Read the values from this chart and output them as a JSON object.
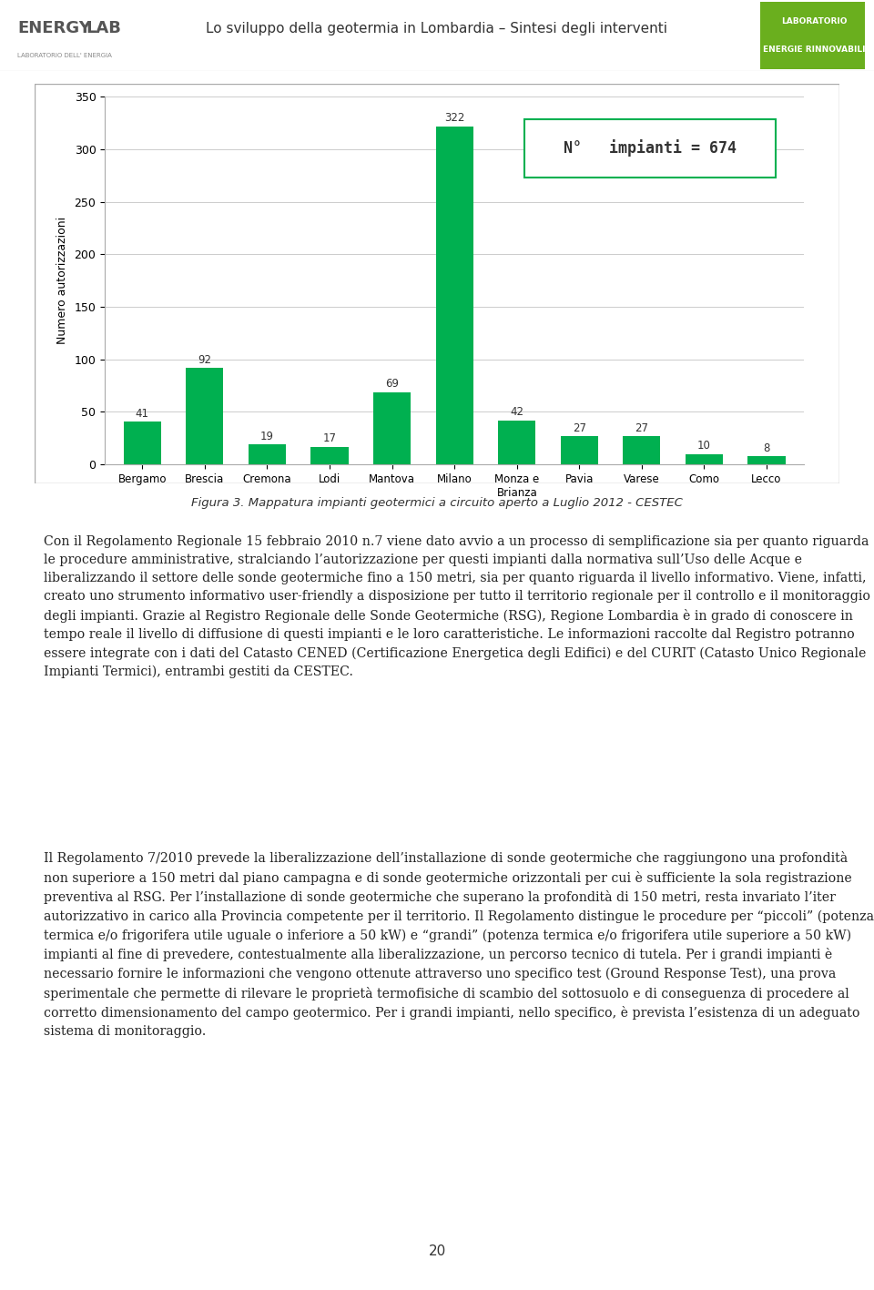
{
  "header_title": "Lo sviluppo della geotermia in Lombardia – Sintesi degli interventi",
  "header_left": "ENERGY LAB\nLABORATORIO DELL' ENERGIA",
  "header_right_line1": "LABORATORIO",
  "header_right_line2": "ENERGIE RINNOVABILI",
  "categories": [
    "Bergamo",
    "Brescia",
    "Cremona",
    "Lodi",
    "Mantova",
    "Milano",
    "Monza e\nBrianza",
    "Pavia",
    "Varese",
    "Como",
    "Lecco"
  ],
  "values": [
    41,
    92,
    19,
    17,
    69,
    322,
    42,
    27,
    27,
    10,
    8
  ],
  "bar_color": "#00b050",
  "ylabel": "Numero autorizzazioni",
  "ylim": [
    0,
    350
  ],
  "yticks": [
    0,
    50,
    100,
    150,
    200,
    250,
    300,
    350
  ],
  "annotation_label": "N°   impianti = 674",
  "figure_caption": "Figura 3. Mappatura impianti geotermici a circuito aperto a Luglio 2012 - CESTEC",
  "para1": "Con il Regolamento Regionale 15 febbraio 2010 n.7 viene dato avvio a un processo di semplificazione sia per quanto riguarda le procedure amministrative, stralciando l’autorizzazione per questi impianti dalla normativa sull’Uso delle Acque e liberalizzando il settore delle sonde geotermiche fino a 150 metri, sia per quanto riguarda il livello informativo. Viene, infatti, creato uno strumento informativo user-friendly a disposizione per tutto il territorio regionale per il controllo e il monitoraggio degli impianti. Grazie al Registro Regionale delle Sonde Geotermiche (RSG), Regione Lombardia è in grado di conoscere in tempo reale il livello di diffusione di questi impianti e le loro caratteristiche. Le informazioni raccolte dal Registro potranno essere integrate con i dati del Catasto CENED (Certificazione Energetica degli Edifici) e del CURIT (Catasto Unico Regionale Impianti Termici), entrambi gestiti da CESTEC.",
  "para2": "Il Regolamento 7/2010 prevede la liberalizzazione dell’installazione di sonde geotermiche che raggiungono una profondità non superiore a 150 metri dal piano campagna e di sonde geotermiche orizzontali per cui è sufficiente la sola registrazione preventiva al RSG. Per l’installazione di sonde geotermiche che superano la profondità di 150 metri, resta invariato l’iter autorizzativo in carico alla Provincia competente per il territorio. Il Regolamento distingue le procedure per “piccoli” (potenza termica e/o frigorifera utile uguale o inferiore a 50 kW) e “grandi” (potenza termica e/o frigorifera utile superiore a 50 kW) impianti al fine di prevedere, contestualmente alla liberalizzazione, un percorso tecnico di tutela. Per i grandi impianti è necessario fornire le informazioni che vengono ottenute attraverso uno specifico test (Ground Response Test), una prova sperimentale che permette di rilevare le proprietà termofisiche di scambio del sottosuolo e di conseguenza di procedere al corretto dimensionamento del campo geotermico. Per i grandi impianti, nello specifico, è prevista l’esistenza di un adeguato sistema di monitoraggio.",
  "page_number": "20",
  "chart_bg": "#ffffff",
  "chart_border": "#cccccc",
  "annotation_box_fill": "#ffffff",
  "annotation_box_edge": "#00b050",
  "header_right_bg": "#6aaf1e",
  "header_right_text": "#ffffff"
}
